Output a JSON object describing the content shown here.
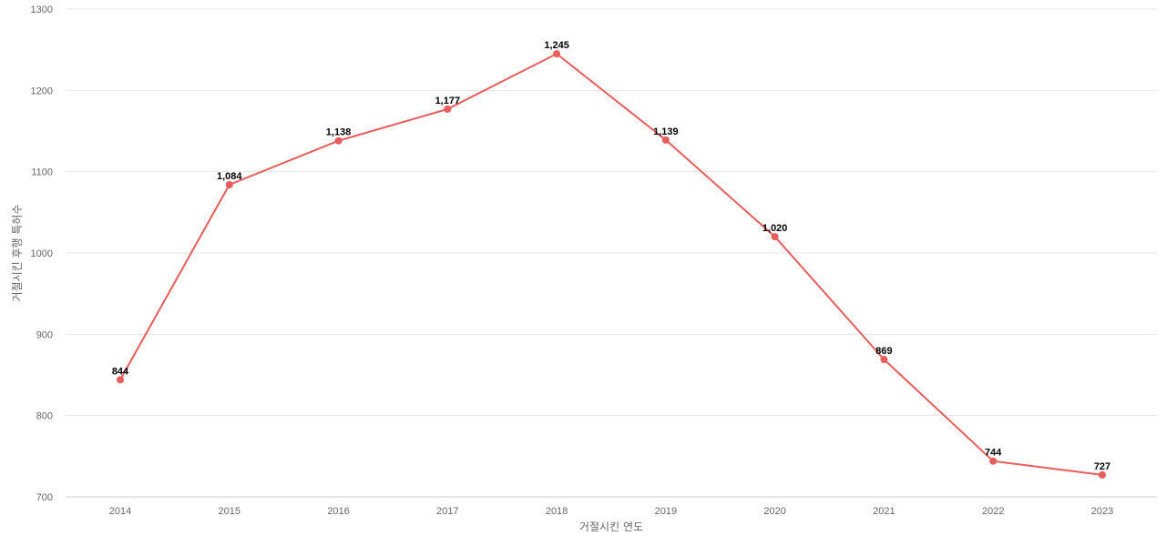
{
  "chart_data": {
    "type": "line",
    "xlabel": "거절시킨 연도",
    "ylabel": "거절시킨 후행 특허수",
    "ylim": [
      700,
      1300
    ],
    "yticks": [
      700,
      800,
      900,
      1000,
      1100,
      1200,
      1300
    ],
    "grid": true,
    "categories": [
      "2014",
      "2015",
      "2016",
      "2017",
      "2018",
      "2019",
      "2020",
      "2021",
      "2022",
      "2023"
    ],
    "series": [
      {
        "values": [
          844,
          1084,
          1138,
          1177,
          1245,
          1139,
          1020,
          869,
          744,
          727
        ],
        "labels": [
          "844",
          "1,084",
          "1,138",
          "1,177",
          "1,245",
          "1,139",
          "1,020",
          "869",
          "744",
          "727"
        ],
        "color": "#e85c5c"
      }
    ]
  }
}
